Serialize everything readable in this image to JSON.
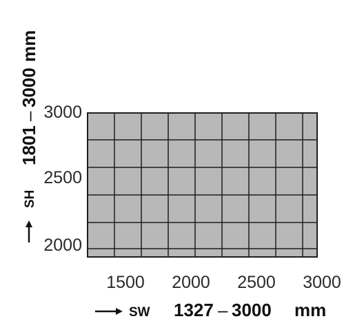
{
  "chart_data": {
    "type": "area",
    "x_axis": {
      "prefix": "SW",
      "range_text": "1327",
      "range_dash": "–",
      "range_end": "3000",
      "unit": "mm",
      "ticks": [
        1500,
        2000,
        2500,
        3000
      ],
      "range": [
        1327,
        3000
      ],
      "grid_lines": [
        1327,
        1533,
        1740,
        1946,
        2153,
        2359,
        2566,
        2772,
        2979,
        3000
      ]
    },
    "y_axis": {
      "prefix": "SH",
      "range_text": "1801",
      "range_dash": "–",
      "range_end": "3000",
      "unit": "mm",
      "ticks": [
        2000,
        2500,
        3000
      ],
      "range": [
        1801,
        3000
      ],
      "grid_lines": [
        1801,
        1938,
        2000,
        2250,
        2500,
        2750,
        3000
      ]
    },
    "region": {
      "x": [
        1327,
        3000
      ],
      "y": [
        1801,
        3000
      ],
      "fill": "#b8b8b8",
      "grid_color": "#1e1e1e"
    }
  }
}
